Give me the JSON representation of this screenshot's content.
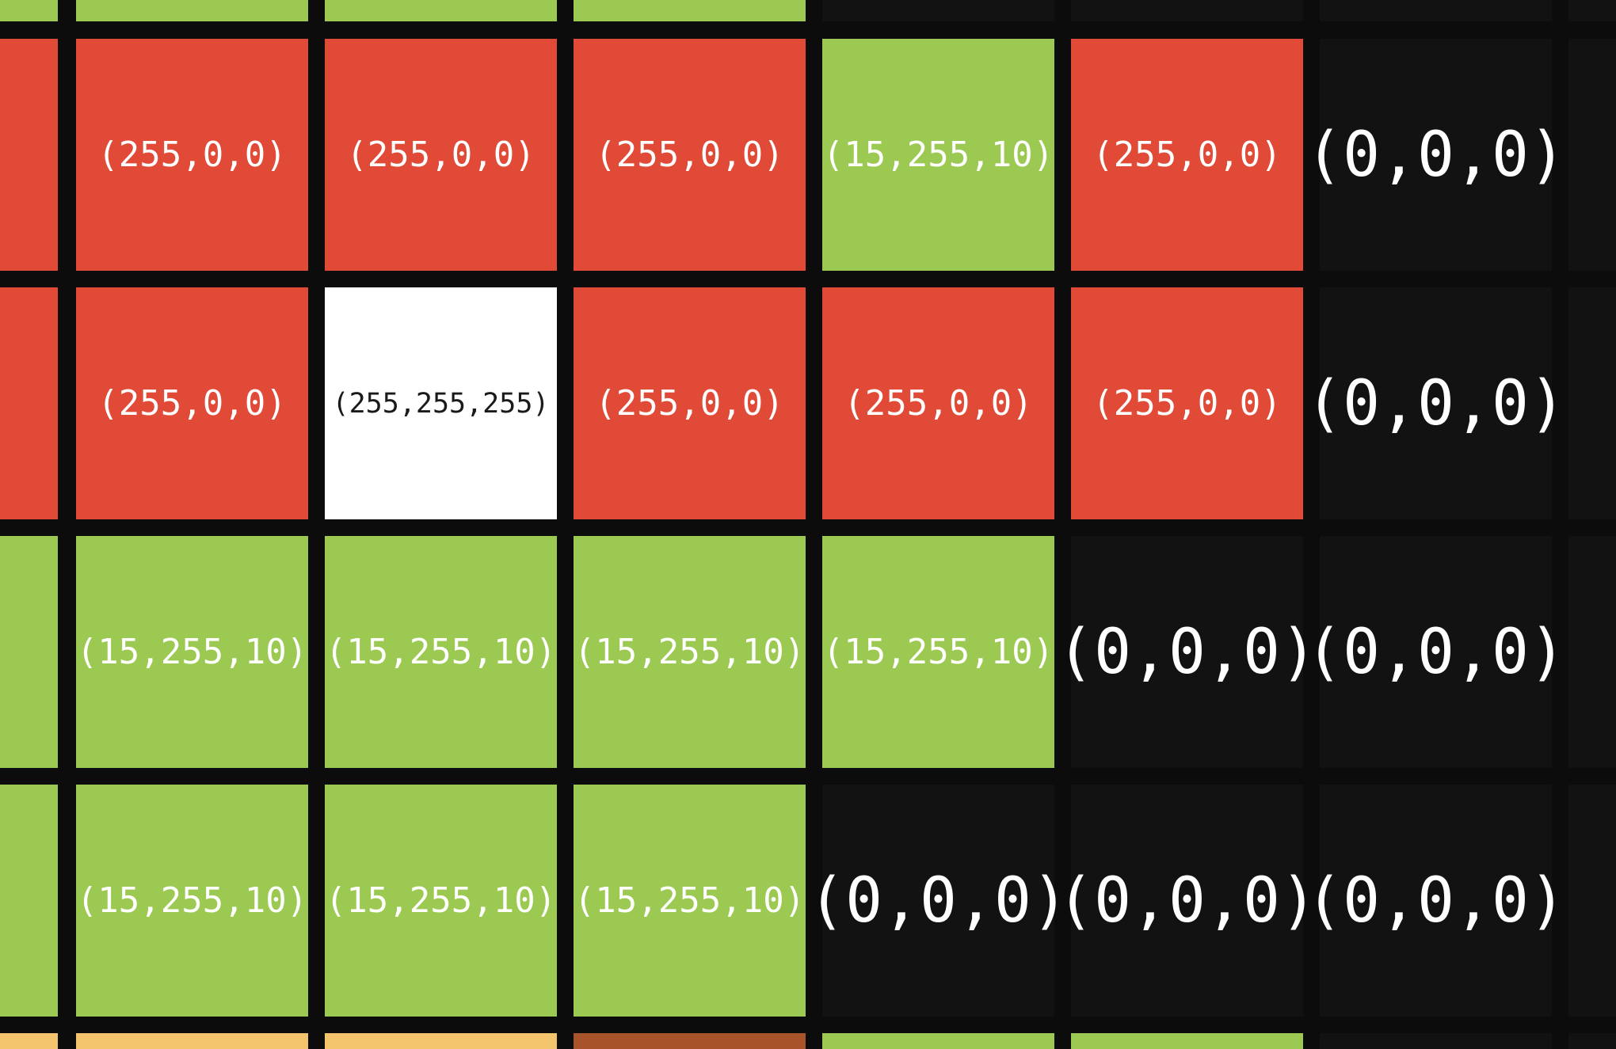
{
  "legend_colors": {
    "red": "#e04a36",
    "green": "#9bc951",
    "white": "#ffffff",
    "black": "#121212",
    "tan": "#f4c46c",
    "brown": "#a9532a"
  },
  "grid": {
    "rows": [
      {
        "id": "top-partial",
        "cells": [
          {
            "color": "green",
            "label": ""
          },
          {
            "color": "green",
            "label": ""
          },
          {
            "color": "green",
            "label": ""
          },
          {
            "color": "green",
            "label": ""
          },
          {
            "color": "black",
            "label": ""
          },
          {
            "color": "black",
            "label": ""
          },
          {
            "color": "black",
            "label": ""
          },
          {
            "color": "black",
            "label": ""
          }
        ]
      },
      {
        "id": "row-1",
        "cells": [
          {
            "color": "red",
            "label": ""
          },
          {
            "color": "red",
            "label": "(255,0,0)"
          },
          {
            "color": "red",
            "label": "(255,0,0)"
          },
          {
            "color": "red",
            "label": "(255,0,0)"
          },
          {
            "color": "green",
            "label": "(15,255,10)"
          },
          {
            "color": "red",
            "label": "(255,0,0)"
          },
          {
            "color": "black",
            "label": "(0,0,0)"
          },
          {
            "color": "black",
            "label": ""
          }
        ]
      },
      {
        "id": "row-2",
        "cells": [
          {
            "color": "red",
            "label": ""
          },
          {
            "color": "red",
            "label": "(255,0,0)"
          },
          {
            "color": "white",
            "label": "(255,255,255)"
          },
          {
            "color": "red",
            "label": "(255,0,0)"
          },
          {
            "color": "red",
            "label": "(255,0,0)"
          },
          {
            "color": "red",
            "label": "(255,0,0)"
          },
          {
            "color": "black",
            "label": "(0,0,0)"
          },
          {
            "color": "black",
            "label": ""
          }
        ]
      },
      {
        "id": "row-3",
        "cells": [
          {
            "color": "green",
            "label": ""
          },
          {
            "color": "green",
            "label": "(15,255,10)"
          },
          {
            "color": "green",
            "label": "(15,255,10)"
          },
          {
            "color": "green",
            "label": "(15,255,10)"
          },
          {
            "color": "green",
            "label": "(15,255,10)"
          },
          {
            "color": "black",
            "label": "(0,0,0)"
          },
          {
            "color": "black",
            "label": "(0,0,0)"
          },
          {
            "color": "black",
            "label": ""
          }
        ]
      },
      {
        "id": "row-4",
        "cells": [
          {
            "color": "green",
            "label": ""
          },
          {
            "color": "green",
            "label": "(15,255,10)"
          },
          {
            "color": "green",
            "label": "(15,255,10)"
          },
          {
            "color": "green",
            "label": "(15,255,10)"
          },
          {
            "color": "black",
            "label": "(0,0,0)"
          },
          {
            "color": "black",
            "label": "(0,0,0)"
          },
          {
            "color": "black",
            "label": "(0,0,0)"
          },
          {
            "color": "black",
            "label": ""
          }
        ]
      },
      {
        "id": "bottom-partial",
        "cells": [
          {
            "color": "tan",
            "label": ""
          },
          {
            "color": "tan",
            "label": ""
          },
          {
            "color": "tan",
            "label": ""
          },
          {
            "color": "brown",
            "label": ""
          },
          {
            "color": "green",
            "label": ""
          },
          {
            "color": "green",
            "label": ""
          },
          {
            "color": "black",
            "label": ""
          },
          {
            "color": "black",
            "label": ""
          }
        ]
      }
    ]
  }
}
